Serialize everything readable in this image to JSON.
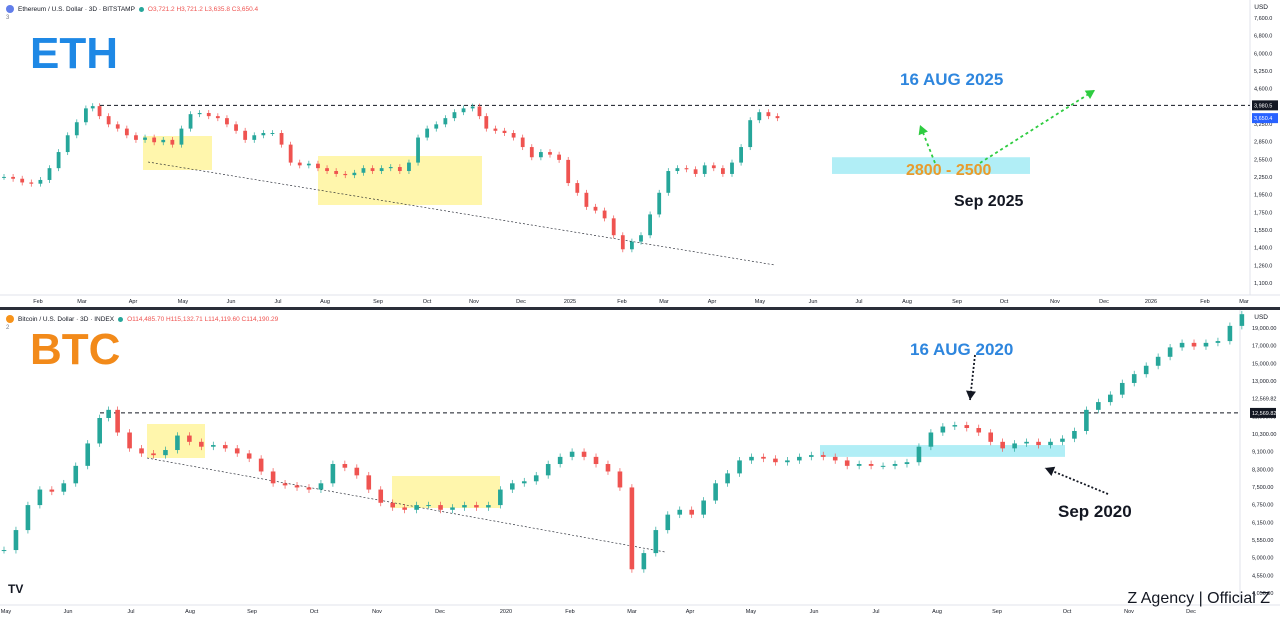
{
  "eth": {
    "big_label": "ETH",
    "header": "Ethereum / U.S. Dollar · 3D · BITSTAMP",
    "ohlc": "O3,721.2 H3,721.2 L3,635.8 C3,650.4",
    "sub": "3",
    "currency": "USD",
    "annotations": {
      "date_top": "16 AUG 2025",
      "zone": "2800 - 2500",
      "date_bottom": "Sep 2025"
    },
    "colors": {
      "big_label": "#1e88e5",
      "date_top": "#2e86de",
      "zone": "#e89b2c",
      "zone_fill": "#a9ecf5",
      "box_fill": "#fff59d",
      "arrow": "#2ecc40"
    }
  },
  "btc": {
    "big_label": "BTC",
    "header": "Bitcoin / U.S. Dollar · 3D · INDEX",
    "ohlc": "O114,485.70 H115,132.71 L114,119.60 C114,190.29",
    "sub": "2",
    "currency": "USD",
    "annotations": {
      "date_top": "16 AUG 2020",
      "date_bottom": "Sep 2020"
    },
    "colors": {
      "big_label": "#f28a1a",
      "date_top": "#2e86de",
      "zone_fill": "#a9ecf5",
      "box_fill": "#fff59d",
      "arrow": "#131722"
    }
  },
  "watermark": "Z Agency | Official Z",
  "tv_logo": "TV",
  "chart_data": [
    {
      "type": "candlestick",
      "title": "Ethereum / U.S. Dollar · 3D · BITSTAMP",
      "ylim": [
        1100,
        7600
      ],
      "scale": "log",
      "y_ticks": [
        "7,600.0",
        "6,800.0",
        "6,000.0",
        "5,250.0",
        "4,600.0",
        "4,000.0",
        "3,250.0",
        "2,850.0",
        "2,550.0",
        "2,250.0",
        "1,950.0",
        "1,750.0",
        "1,550.0",
        "1,400.0",
        "1,260.0",
        "1,100.0"
      ],
      "x_ticks": [
        "Feb",
        "Mar",
        "Apr",
        "May",
        "Jun",
        "Jul",
        "Aug",
        "Sep",
        "Oct",
        "Nov",
        "Dec",
        "2025",
        "Feb",
        "Mar",
        "Apr",
        "May",
        "Jun",
        "Jul",
        "Aug",
        "Sep",
        "Oct",
        "Nov",
        "Dec",
        "2026",
        "Feb",
        "Mar"
      ],
      "price_labels": [
        "3,980.5",
        "3,650.4"
      ],
      "resistance": 3980.5,
      "support_zone": [
        2500,
        2800
      ],
      "close_path": [
        [
          0,
          2450
        ],
        [
          4,
          2420
        ],
        [
          8,
          2360
        ],
        [
          12,
          2340
        ],
        [
          16,
          2400
        ],
        [
          20,
          2600
        ],
        [
          24,
          2900
        ],
        [
          28,
          3250
        ],
        [
          32,
          3550
        ],
        [
          36,
          3900
        ],
        [
          39,
          3960
        ],
        [
          42,
          3700
        ],
        [
          46,
          3500
        ],
        [
          50,
          3400
        ],
        [
          54,
          3250
        ],
        [
          58,
          3150
        ],
        [
          62,
          3200
        ],
        [
          66,
          3100
        ],
        [
          70,
          3150
        ],
        [
          74,
          3050
        ],
        [
          78,
          3400
        ],
        [
          82,
          3750
        ],
        [
          86,
          3780
        ],
        [
          90,
          3700
        ],
        [
          94,
          3650
        ],
        [
          98,
          3500
        ],
        [
          102,
          3350
        ],
        [
          106,
          3150
        ],
        [
          110,
          3250
        ],
        [
          114,
          3300
        ],
        [
          118,
          3300
        ],
        [
          122,
          3050
        ],
        [
          126,
          2700
        ],
        [
          130,
          2650
        ],
        [
          134,
          2680
        ],
        [
          138,
          2600
        ],
        [
          142,
          2550
        ],
        [
          146,
          2500
        ],
        [
          150,
          2480
        ],
        [
          154,
          2520
        ],
        [
          158,
          2600
        ],
        [
          162,
          2550
        ],
        [
          166,
          2600
        ],
        [
          170,
          2620
        ],
        [
          174,
          2550
        ],
        [
          178,
          2700
        ],
        [
          182,
          3200
        ],
        [
          186,
          3400
        ],
        [
          190,
          3500
        ],
        [
          194,
          3650
        ],
        [
          198,
          3800
        ],
        [
          202,
          3900
        ],
        [
          206,
          3950
        ],
        [
          209,
          3700
        ],
        [
          212,
          3400
        ],
        [
          216,
          3350
        ],
        [
          220,
          3300
        ],
        [
          224,
          3200
        ],
        [
          228,
          3000
        ],
        [
          232,
          2800
        ],
        [
          236,
          2900
        ],
        [
          240,
          2850
        ],
        [
          244,
          2750
        ],
        [
          248,
          2350
        ],
        [
          252,
          2200
        ],
        [
          256,
          2000
        ],
        [
          260,
          1950
        ],
        [
          264,
          1850
        ],
        [
          268,
          1650
        ],
        [
          272,
          1500
        ],
        [
          276,
          1580
        ],
        [
          280,
          1650
        ],
        [
          284,
          1900
        ],
        [
          288,
          2200
        ],
        [
          292,
          2550
        ],
        [
          296,
          2600
        ],
        [
          300,
          2580
        ],
        [
          304,
          2500
        ],
        [
          308,
          2650
        ],
        [
          312,
          2600
        ],
        [
          316,
          2500
        ],
        [
          320,
          2700
        ],
        [
          324,
          3000
        ],
        [
          328,
          3600
        ],
        [
          332,
          3800
        ],
        [
          336,
          3700
        ],
        [
          340,
          3650
        ]
      ]
    },
    {
      "type": "candlestick",
      "title": "Bitcoin / U.S. Dollar · 3D · INDEX",
      "ylim": [
        4050,
        22000
      ],
      "scale": "log",
      "y_ticks": [
        "19,000.00",
        "17,000.00",
        "15,000.00",
        "13,000.00",
        "12,569.82",
        "11,500.00",
        "10,300.00",
        "9,100.00",
        "8,300.00",
        "7,500.00",
        "6,750.00",
        "6,150.00",
        "5,550.00",
        "5,000.00",
        "4,550.00",
        "4,050.00"
      ],
      "x_ticks": [
        "May",
        "Jun",
        "Jul",
        "Aug",
        "Sep",
        "Oct",
        "Nov",
        "Dec",
        "2020",
        "Feb",
        "Mar",
        "Apr",
        "May",
        "Jun",
        "Jul",
        "Aug",
        "Sep",
        "Oct",
        "Nov",
        "Dec"
      ],
      "price_labels": [
        "12,569.82"
      ],
      "resistance": 12569.82,
      "support_zone": [
        9700,
        10400
      ],
      "close_path": [
        [
          0,
          5600
        ],
        [
          4,
          6300
        ],
        [
          8,
          7300
        ],
        [
          12,
          8000
        ],
        [
          16,
          7900
        ],
        [
          20,
          8300
        ],
        [
          24,
          9200
        ],
        [
          28,
          10500
        ],
        [
          32,
          12200
        ],
        [
          35,
          12800
        ],
        [
          38,
          11200
        ],
        [
          42,
          10200
        ],
        [
          46,
          9900
        ],
        [
          50,
          9800
        ],
        [
          54,
          10100
        ],
        [
          58,
          11000
        ],
        [
          62,
          10600
        ],
        [
          66,
          10300
        ],
        [
          70,
          10400
        ],
        [
          74,
          10200
        ],
        [
          78,
          9900
        ],
        [
          82,
          9600
        ],
        [
          86,
          8900
        ],
        [
          90,
          8300
        ],
        [
          94,
          8200
        ],
        [
          98,
          8100
        ],
        [
          102,
          8000
        ],
        [
          106,
          8300
        ],
        [
          110,
          9300
        ],
        [
          114,
          9100
        ],
        [
          118,
          8700
        ],
        [
          122,
          8000
        ],
        [
          126,
          7400
        ],
        [
          130,
          7200
        ],
        [
          134,
          7100
        ],
        [
          138,
          7300
        ],
        [
          142,
          7300
        ],
        [
          146,
          7100
        ],
        [
          150,
          7200
        ],
        [
          154,
          7300
        ],
        [
          158,
          7200
        ],
        [
          162,
          7300
        ],
        [
          166,
          8000
        ],
        [
          170,
          8300
        ],
        [
          174,
          8400
        ],
        [
          178,
          8700
        ],
        [
          182,
          9300
        ],
        [
          186,
          9700
        ],
        [
          190,
          10000
        ],
        [
          194,
          9700
        ],
        [
          198,
          9300
        ],
        [
          202,
          8900
        ],
        [
          206,
          8100
        ],
        [
          210,
          5000
        ],
        [
          214,
          5500
        ],
        [
          218,
          6300
        ],
        [
          222,
          6900
        ],
        [
          226,
          7100
        ],
        [
          230,
          6900
        ],
        [
          234,
          7500
        ],
        [
          238,
          8300
        ],
        [
          242,
          8800
        ],
        [
          246,
          9500
        ],
        [
          250,
          9700
        ],
        [
          254,
          9600
        ],
        [
          258,
          9400
        ],
        [
          262,
          9500
        ],
        [
          266,
          9700
        ],
        [
          270,
          9800
        ],
        [
          274,
          9700
        ],
        [
          278,
          9500
        ],
        [
          282,
          9200
        ],
        [
          286,
          9300
        ],
        [
          290,
          9200
        ],
        [
          294,
          9200
        ],
        [
          298,
          9300
        ],
        [
          302,
          9400
        ],
        [
          306,
          10300
        ],
        [
          310,
          11200
        ],
        [
          314,
          11600
        ],
        [
          318,
          11700
        ],
        [
          322,
          11500
        ],
        [
          326,
          11200
        ],
        [
          330,
          10600
        ],
        [
          334,
          10200
        ],
        [
          338,
          10500
        ],
        [
          342,
          10600
        ],
        [
          346,
          10400
        ],
        [
          350,
          10600
        ],
        [
          354,
          10800
        ],
        [
          358,
          11300
        ],
        [
          362,
          12800
        ],
        [
          366,
          13400
        ],
        [
          370,
          14000
        ],
        [
          374,
          15000
        ],
        [
          378,
          15800
        ],
        [
          382,
          16600
        ],
        [
          386,
          17500
        ],
        [
          390,
          18500
        ],
        [
          394,
          19000
        ],
        [
          398,
          18600
        ],
        [
          402,
          19000
        ],
        [
          406,
          19200
        ],
        [
          410,
          21000
        ],
        [
          414,
          22500
        ]
      ]
    }
  ]
}
